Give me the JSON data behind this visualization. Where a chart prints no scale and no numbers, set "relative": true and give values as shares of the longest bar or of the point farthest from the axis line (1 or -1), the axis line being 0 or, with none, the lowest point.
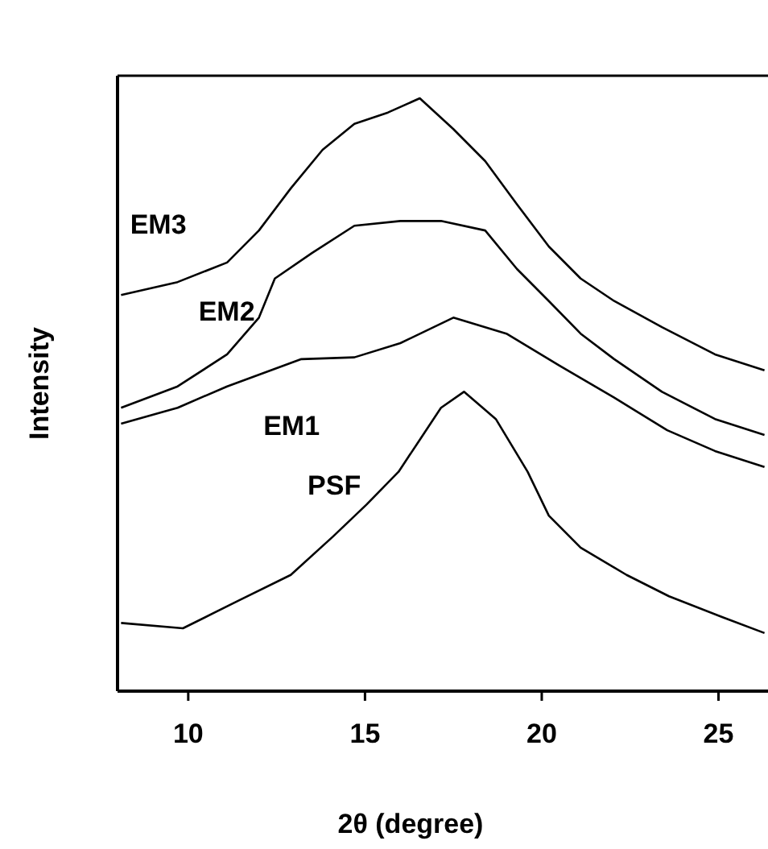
{
  "chart_data": {
    "type": "line",
    "xlabel": "2θ (degree)",
    "ylabel": "Intensity",
    "relative": true,
    "xlim": [
      8,
      26.4
    ],
    "xticks": [
      10,
      15,
      20,
      25
    ],
    "grid": false,
    "marker": "none",
    "line_style": "solid",
    "series": [
      {
        "name": "EM3",
        "color": "#000000",
        "x": [
          8.1,
          9.7,
          11.1,
          12.0,
          12.9,
          13.8,
          14.7,
          15.65,
          16.55,
          17.5,
          18.4,
          19.3,
          20.2,
          21.1,
          22.05,
          23.4,
          24.9,
          26.3
        ],
        "values": [
          0.668,
          0.69,
          0.723,
          0.777,
          0.848,
          0.913,
          0.957,
          0.976,
          1,
          0.948,
          0.894,
          0.821,
          0.75,
          0.696,
          0.658,
          0.614,
          0.568,
          0.541
        ]
      },
      {
        "name": "EM2",
        "color": "#000000",
        "x": [
          8.1,
          9.7,
          11.1,
          12.0,
          12.45,
          13.5,
          14.7,
          16.0,
          17.15,
          18.4,
          19.3,
          20.2,
          21.1,
          22.05,
          23.4,
          24.9,
          26.3
        ],
        "values": [
          0.478,
          0.514,
          0.568,
          0.63,
          0.696,
          0.739,
          0.785,
          0.793,
          0.793,
          0.777,
          0.712,
          0.658,
          0.603,
          0.56,
          0.505,
          0.459,
          0.432
        ]
      },
      {
        "name": "EM1",
        "color": "#000000",
        "x": [
          8.1,
          9.7,
          11.1,
          13.2,
          14.7,
          16.0,
          17.5,
          19.0,
          20.5,
          22.05,
          23.55,
          24.9,
          26.3
        ],
        "values": [
          0.451,
          0.478,
          0.514,
          0.56,
          0.563,
          0.587,
          0.63,
          0.603,
          0.549,
          0.495,
          0.44,
          0.405,
          0.378
        ]
      },
      {
        "name": "PSF",
        "color": "#000000",
        "x": [
          8.1,
          9.85,
          11.4,
          12.9,
          14.1,
          15.05,
          15.95,
          16.55,
          17.15,
          17.8,
          18.7,
          19.6,
          20.2,
          21.1,
          22.4,
          23.6,
          25.1,
          26.3
        ],
        "values": [
          0.115,
          0.106,
          0.152,
          0.196,
          0.261,
          0.315,
          0.37,
          0.424,
          0.478,
          0.505,
          0.459,
          0.37,
          0.296,
          0.242,
          0.196,
          0.16,
          0.125,
          0.098
        ]
      }
    ]
  }
}
